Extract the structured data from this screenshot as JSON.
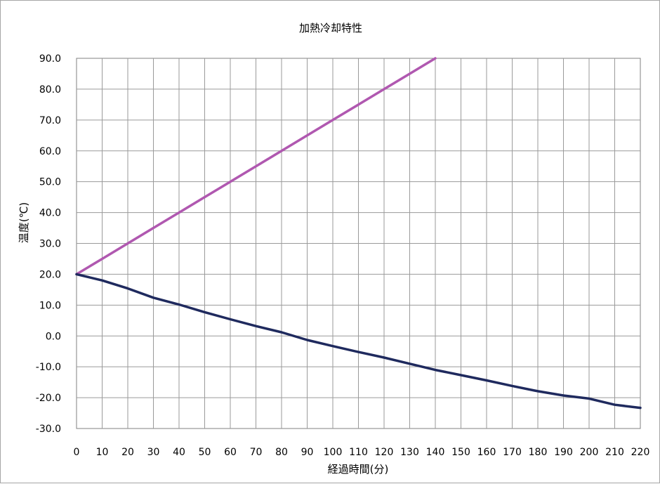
{
  "chart_data": {
    "type": "line",
    "title": "加熱冷却特性",
    "xlabel": "経過時間(分)",
    "ylabel": "温度(℃)",
    "xlim": [
      0,
      220
    ],
    "ylim": [
      -30,
      90
    ],
    "grid": true,
    "x_ticks": [
      "0",
      "10",
      "20",
      "30",
      "40",
      "50",
      "60",
      "70",
      "80",
      "90",
      "100",
      "110",
      "120",
      "130",
      "140",
      "150",
      "160",
      "170",
      "180",
      "190",
      "200",
      "210",
      "220"
    ],
    "y_ticks": [
      "90.0",
      "80.0",
      "70.0",
      "60.0",
      "50.0",
      "40.0",
      "30.0",
      "20.0",
      "10.0",
      "0.0",
      "-10.0",
      "-20.0",
      "-30.0"
    ],
    "series": [
      {
        "color": "#b058b0",
        "x": [
          0,
          10,
          20,
          30,
          40,
          50,
          60,
          70,
          80,
          90,
          100,
          110,
          120,
          130,
          140
        ],
        "y": [
          20,
          25,
          30,
          35,
          40,
          45,
          50,
          55,
          60,
          65,
          70,
          75,
          80,
          85,
          90
        ]
      },
      {
        "color": "#1f2a5e",
        "x": [
          0,
          10,
          20,
          30,
          40,
          50,
          60,
          70,
          80,
          90,
          100,
          110,
          120,
          130,
          140,
          150,
          160,
          170,
          180,
          190,
          200,
          210,
          220
        ],
        "y": [
          20,
          18,
          15.4,
          12.4,
          10.2,
          7.7,
          5.4,
          3.2,
          1.2,
          -1.3,
          -3.3,
          -5.2,
          -7.0,
          -9.0,
          -11.0,
          -12.7,
          -14.4,
          -16.2,
          -17.9,
          -19.3,
          -20.3,
          -22.3,
          -23.3
        ]
      }
    ]
  }
}
